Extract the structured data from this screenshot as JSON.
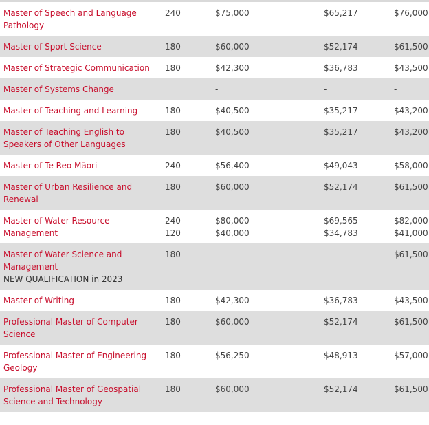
{
  "rows": [
    {
      "name": "Master of Speech and Language Pathology",
      "note": "",
      "points": [
        "240"
      ],
      "fee": [
        "$75,000"
      ],
      "col3": [
        "$65,217"
      ],
      "col4": [
        "$76,000"
      ]
    },
    {
      "name": "Master of Sport Science",
      "note": "",
      "points": [
        "180"
      ],
      "fee": [
        "$60,000"
      ],
      "col3": [
        "$52,174"
      ],
      "col4": [
        "$61,500"
      ]
    },
    {
      "name": "Master of Strategic Communication",
      "note": "",
      "points": [
        "180"
      ],
      "fee": [
        "$42,300"
      ],
      "col3": [
        "$36,783"
      ],
      "col4": [
        "$43,500"
      ]
    },
    {
      "name": "Master of Systems Change",
      "note": "",
      "points": [
        ""
      ],
      "fee": [
        "-"
      ],
      "col3": [
        "-"
      ],
      "col4": [
        "-"
      ]
    },
    {
      "name": "Master of Teaching and Learning",
      "note": "",
      "points": [
        "180"
      ],
      "fee": [
        "$40,500"
      ],
      "col3": [
        "$35,217"
      ],
      "col4": [
        "$43,200"
      ]
    },
    {
      "name": "Master of Teaching English to Speakers of Other Languages",
      "note": "",
      "points": [
        "180"
      ],
      "fee": [
        "$40,500"
      ],
      "col3": [
        "$35,217"
      ],
      "col4": [
        "$43,200"
      ]
    },
    {
      "name": "Master of Te Reo Māori",
      "note": "",
      "points": [
        "240"
      ],
      "fee": [
        "$56,400"
      ],
      "col3": [
        "$49,043"
      ],
      "col4": [
        "$58,000"
      ]
    },
    {
      "name": "Master of Urban Resilience and Renewal",
      "note": "",
      "points": [
        "180"
      ],
      "fee": [
        "$60,000"
      ],
      "col3": [
        "$52,174"
      ],
      "col4": [
        "$61,500"
      ]
    },
    {
      "name": "Master of Water Resource Management",
      "note": "",
      "points": [
        "240",
        "120"
      ],
      "fee": [
        "$80,000",
        "$40,000"
      ],
      "col3": [
        "$69,565",
        "$34,783"
      ],
      "col4": [
        "$82,000",
        "$41,000"
      ]
    },
    {
      "name": "Master of Water Science and Management",
      "note": "NEW QUALIFICATION in 2023",
      "points": [
        "180"
      ],
      "fee": [
        ""
      ],
      "col3": [
        ""
      ],
      "col4": [
        "$61,500"
      ]
    },
    {
      "name": "Master of Writing",
      "note": "",
      "points": [
        "180"
      ],
      "fee": [
        "$42,300"
      ],
      "col3": [
        "$36,783"
      ],
      "col4": [
        "$43,500"
      ]
    },
    {
      "name": "Professional Master of Computer Science",
      "note": "",
      "points": [
        "180"
      ],
      "fee": [
        "$60,000"
      ],
      "col3": [
        "$52,174"
      ],
      "col4": [
        "$61,500"
      ]
    },
    {
      "name": "Professional Master of Engineering Geology",
      "note": "",
      "points": [
        "180"
      ],
      "fee": [
        "$56,250"
      ],
      "col3": [
        "$48,913"
      ],
      "col4": [
        "$57,000"
      ]
    },
    {
      "name": "Professional Master of Geospatial Science and Technology",
      "note": "",
      "points": [
        "180"
      ],
      "fee": [
        "$60,000"
      ],
      "col3": [
        "$52,174"
      ],
      "col4": [
        "$61,500"
      ]
    }
  ],
  "colors": {
    "link": "#c8102e",
    "stripe": "#dedede",
    "text": "#444444"
  }
}
